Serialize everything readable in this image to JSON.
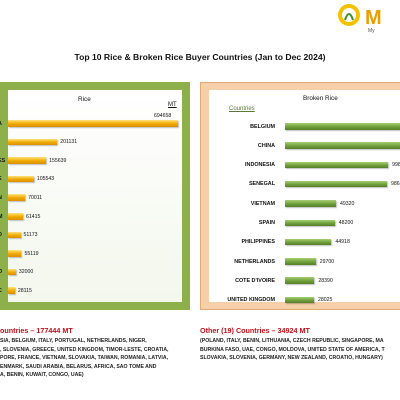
{
  "logo_text": "M",
  "logo_subtext": "My",
  "title": "Top 10 Rice & Broken Rice Buyer Countries (Jan to Dec 2024)",
  "colors": {
    "rice_bar": "#f0a800",
    "broken_bar": "#6f9f3a",
    "left_panel": "#8db04a",
    "right_panel": "#f6cfa9",
    "footer_title": "#c0101a"
  },
  "chart_data": [
    {
      "type": "bar",
      "orientation": "horizontal",
      "title": "Rice",
      "unit": "MT",
      "categories": [
        "A",
        "",
        "ES",
        "E",
        "N",
        "M",
        "D",
        "",
        "O",
        "C"
      ],
      "values": [
        694658,
        201131,
        155639,
        105543,
        70011,
        61415,
        51173,
        55119,
        32000,
        28115
      ]
    },
    {
      "type": "bar",
      "orientation": "horizontal",
      "title": "Broken Rice",
      "ylabel": "Countries",
      "categories": [
        "BELGIUM",
        "CHINA",
        "INDONESIA",
        "SENEGAL",
        "VIETNAM",
        "SPAIN",
        "PHILIPPINES",
        "NETHERLANDS",
        "COTE D'IVOIRE",
        "UNITED KINGDOM"
      ],
      "values": [
        null,
        null,
        99801,
        98658,
        49320,
        48200,
        44918,
        29700,
        28390,
        28025
      ],
      "value_labels": [
        "",
        "3",
        "99801",
        "98658",
        "49320",
        "48200",
        "44918",
        "29700",
        "28390",
        "28025"
      ]
    }
  ],
  "footer_left": {
    "title": "ountries – 177444 MT",
    "lines": [
      "SIA, BELGIUM, ITALY, PORTUGAL, NETHERLANDS, NIGER,",
      ", SLOVENIA, GREECE, UNITED KINGDOM, TIMOR-LESTE, CROATIA,",
      "PORE, FRANCE, VIETNAM, SLOVAKIA, TAIWAN, ROMANIA, LATVIA,",
      "ENMARK, SAUDI ARABIA, BELARUS, AFRICA, SAO TOME AND",
      "A, BENIN, KUWAIT, CONGO, UAE)"
    ]
  },
  "footer_right": {
    "title": "Other (19) Countries – 34924 MT",
    "lines": [
      "(POLAND, ITALY, BENIN, LITHUANIA, CZECH REPUBLIC, SINGAPORE, MA",
      "BURKINA FASO, UAE, CONGO, MOLDOVA, UNITED STATE OF AMERICA, T",
      "SLOVAKIA, SLOVENIA, GERMANY, NEW ZEALAND, CROATIO, HUNGARY)"
    ]
  }
}
